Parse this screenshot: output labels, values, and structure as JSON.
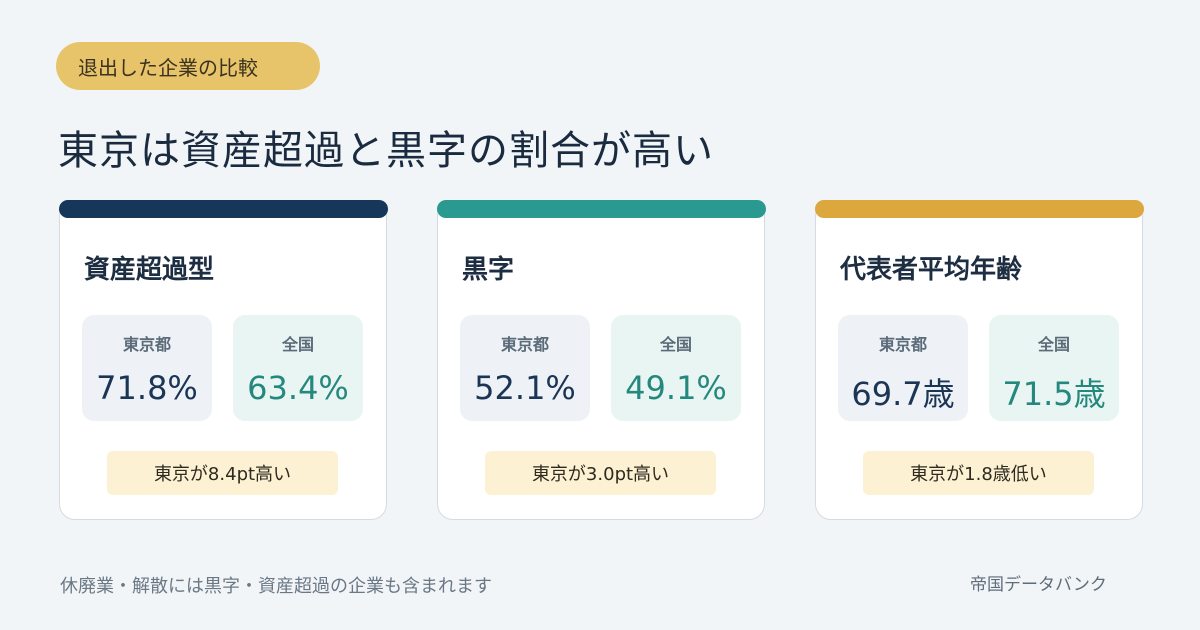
{
  "tag": "退出した企業の比較",
  "headline": "東京は資産超過と黒字の割合が高い",
  "cards": [
    {
      "title": "資産超過型",
      "accent": "#16375a",
      "tokyo_label": "東京都",
      "tokyo_value": "71.8%",
      "national_label": "全国",
      "national_value": "63.4%",
      "note": "東京が8.4pt高い"
    },
    {
      "title": "黒字",
      "accent": "#2a9a90",
      "tokyo_label": "東京都",
      "tokyo_value": "52.1%",
      "national_label": "全国",
      "national_value": "49.1%",
      "note": "東京が3.0pt高い"
    },
    {
      "title": "代表者平均年齢",
      "accent": "#dca73d",
      "tokyo_label": "東京都",
      "tokyo_value": "69.7歳",
      "national_label": "全国",
      "national_value": "71.5歳",
      "note": "東京が1.8歳低い"
    }
  ],
  "footnote": "休廃業・解散には黒字・資産超過の企業も含まれます",
  "source": "帝国データバンク"
}
